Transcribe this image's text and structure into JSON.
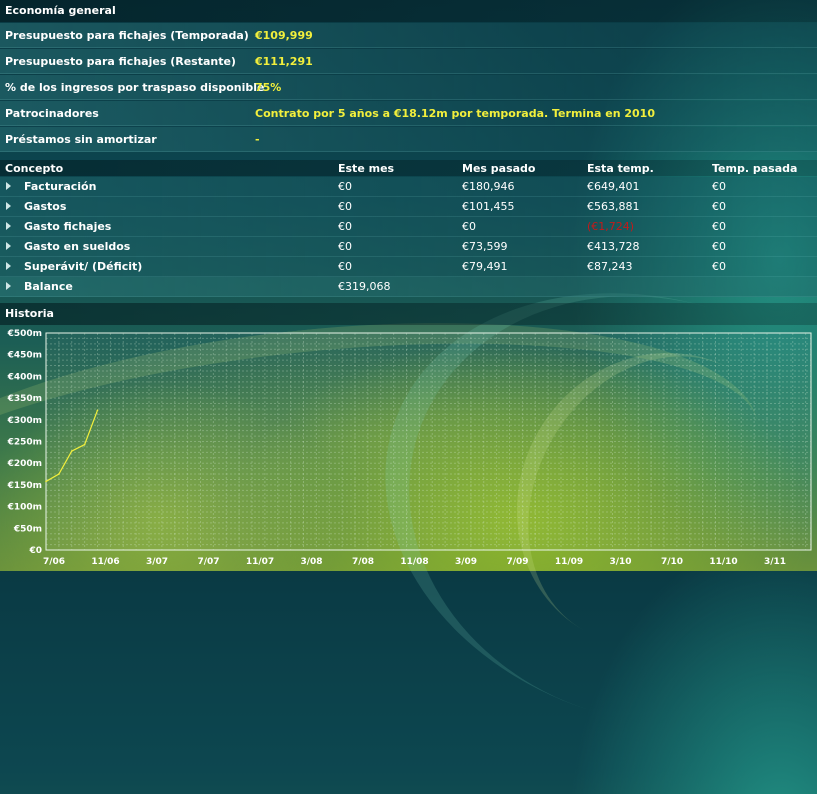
{
  "economy": {
    "title": "Economía general",
    "rows": [
      {
        "label": "Presupuesto para fichajes (Temporada)",
        "value": "€109,999"
      },
      {
        "label": "Presupuesto para fichajes (Restante)",
        "value": "€111,291"
      },
      {
        "label": "% de los ingresos por traspaso disponible",
        "value": "75%"
      },
      {
        "label": "Patrocinadores",
        "value": "Contrato por 5 años a €18.12m por temporada. Termina en 2010"
      },
      {
        "label": "Préstamos sin amortizar",
        "value": "-"
      }
    ]
  },
  "finance_table": {
    "headers": [
      "Concepto",
      "Este mes",
      "Mes pasado",
      "Esta temp.",
      "Temp. pasada"
    ],
    "rows": [
      {
        "concept": "Facturación",
        "values": [
          "€0",
          "€180,946",
          "€649,401",
          "€0"
        ]
      },
      {
        "concept": "Gastos",
        "values": [
          "€0",
          "€101,455",
          "€563,881",
          "€0"
        ]
      },
      {
        "concept": "Gasto fichajes",
        "values": [
          "€0",
          "€0",
          "(€1,724)",
          "€0"
        ],
        "negative_index": 2
      },
      {
        "concept": "Gasto en sueldos",
        "values": [
          "€0",
          "€73,599",
          "€413,728",
          "€0"
        ]
      },
      {
        "concept": "Superávit/ (Déficit)",
        "values": [
          "€0",
          "€79,491",
          "€87,243",
          "€0"
        ]
      }
    ],
    "balance": {
      "concept": "Balance",
      "value": "€319,068"
    },
    "colors": {
      "negative": "#c31a1a",
      "value_highlight": "#f2ef3c"
    }
  },
  "history": {
    "title": "Historia"
  },
  "chart_data": {
    "type": "line",
    "title": "",
    "y_ticks": [
      "€0",
      "€50m",
      "€100m",
      "€150m",
      "€200m",
      "€250m",
      "€300m",
      "€350m",
      "€400m",
      "€450m",
      "€500m"
    ],
    "ylim": [
      0,
      500
    ],
    "x_ticks": [
      "7/06",
      "11/06",
      "3/07",
      "7/07",
      "11/07",
      "3/08",
      "7/08",
      "11/08",
      "3/09",
      "7/09",
      "11/09",
      "3/10",
      "7/10",
      "11/10",
      "3/11"
    ],
    "grid": true,
    "series": [
      {
        "color": "#f2ef3c",
        "points": [
          {
            "x": "7/06",
            "y": 158
          },
          {
            "x": "8/06",
            "y": 175
          },
          {
            "x": "9/06",
            "y": 228
          },
          {
            "x": "10/06",
            "y": 243
          },
          {
            "x": "11/06",
            "y": 322
          }
        ]
      }
    ]
  }
}
